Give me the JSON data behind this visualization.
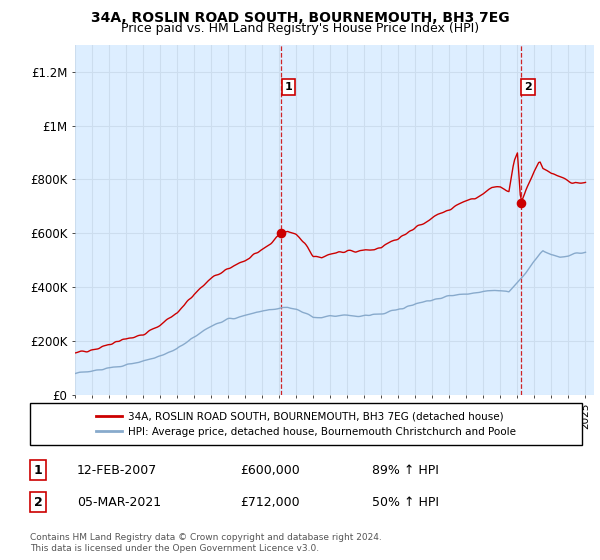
{
  "title": "34A, ROSLIN ROAD SOUTH, BOURNEMOUTH, BH3 7EG",
  "subtitle": "Price paid vs. HM Land Registry's House Price Index (HPI)",
  "title_fontsize": 10,
  "subtitle_fontsize": 9,
  "ylim": [
    0,
    1300000
  ],
  "yticks": [
    0,
    200000,
    400000,
    600000,
    800000,
    1000000,
    1200000
  ],
  "ytick_labels": [
    "£0",
    "£200K",
    "£400K",
    "£600K",
    "£800K",
    "£1M",
    "£1.2M"
  ],
  "background_color": "#ffffff",
  "plot_bg_color": "#ddeeff",
  "grid_color": "#ccddee",
  "sale1_year": 2007.12,
  "sale1_price": 600000,
  "sale2_year": 2021.2,
  "sale2_price": 712000,
  "line1_color": "#cc0000",
  "line2_color": "#88aacc",
  "dot_color": "#cc0000",
  "vline_color": "#cc0000",
  "legend1_text": "34A, ROSLIN ROAD SOUTH, BOURNEMOUTH, BH3 7EG (detached house)",
  "legend2_text": "HPI: Average price, detached house, Bournemouth Christchurch and Poole",
  "ann1_label": "1",
  "ann1_date": "12-FEB-2007",
  "ann1_price": "£600,000",
  "ann1_hpi": "89% ↑ HPI",
  "ann2_label": "2",
  "ann2_date": "05-MAR-2021",
  "ann2_price": "£712,000",
  "ann2_hpi": "50% ↑ HPI",
  "copyright": "Contains HM Land Registry data © Crown copyright and database right 2024.\nThis data is licensed under the Open Government Licence v3.0.",
  "xmin": 1995.0,
  "xmax": 2025.5
}
